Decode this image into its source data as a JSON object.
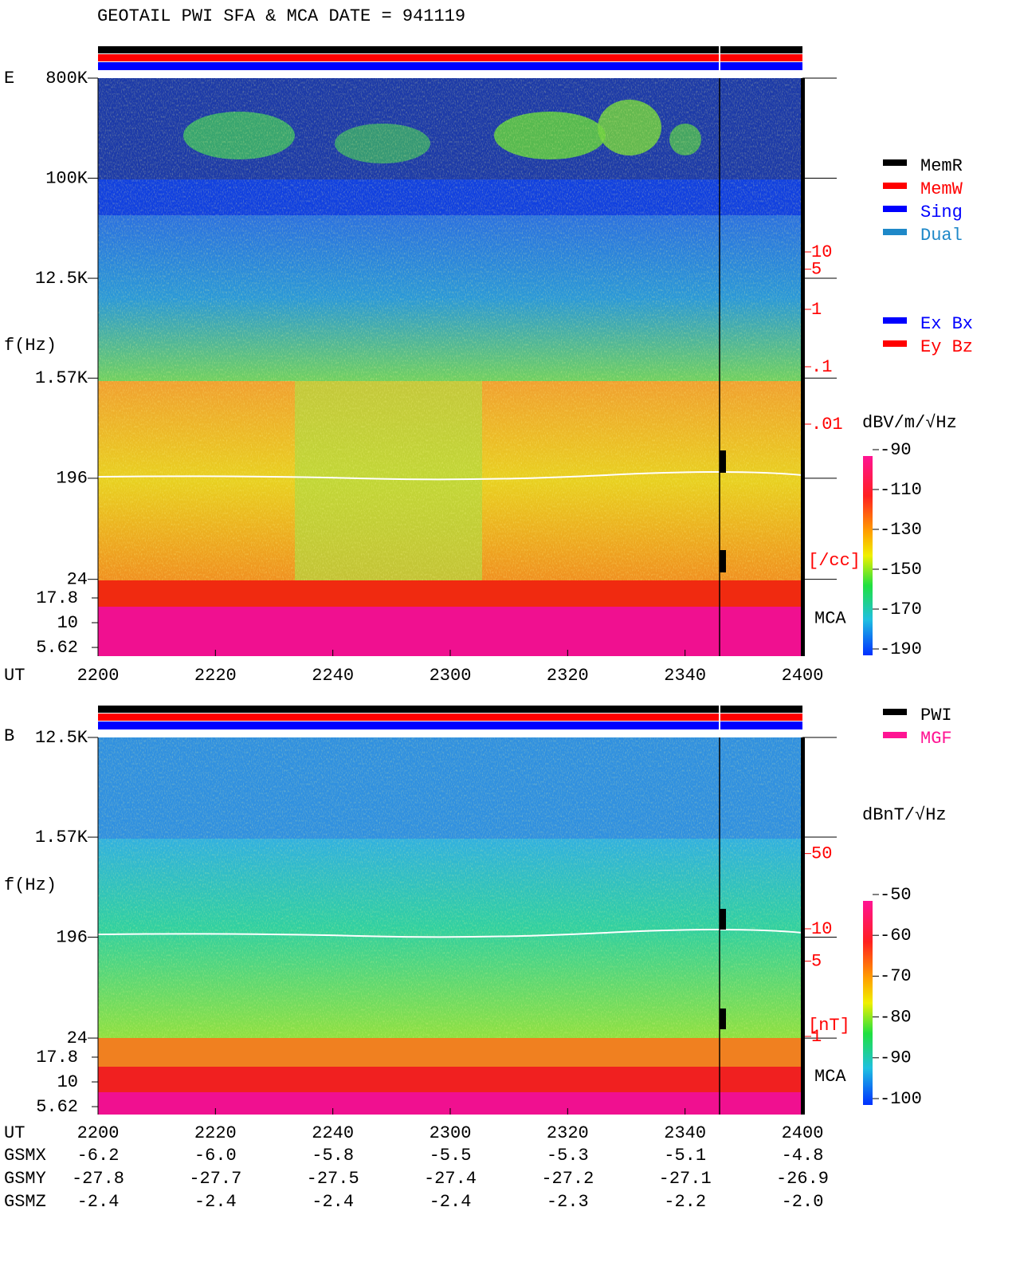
{
  "title": "GEOTAIL  PWI SFA & MCA   DATE = 941119",
  "chart_data": [
    {
      "type": "spectrogram",
      "panel": "E",
      "ylabel": "f(Hz)",
      "xlabel": "UT",
      "log_scale": true,
      "yticks": [
        {
          "value": 800000,
          "label": "800K"
        },
        {
          "value": 100000,
          "label": "100K"
        },
        {
          "value": 12500,
          "label": "12.5K"
        },
        {
          "value": 1570,
          "label": "1.57K"
        },
        196,
        24
      ],
      "mca_label": "MCA",
      "mca_ticks": [
        17.8,
        10,
        5.62
      ],
      "x": [
        "2200",
        "2220",
        "2240",
        "2300",
        "2320",
        "2340",
        "2400"
      ],
      "right_ticks": [
        10,
        5,
        1,
        {
          "value": 0.1,
          "label": ".1"
        },
        {
          "value": 0.01,
          "label": ".01"
        }
      ],
      "right_unit": "[/cc]",
      "colorbar_label": "dBV/m/√Hz",
      "colorbar_ticks": [
        -90,
        -110,
        -130,
        -150,
        -170,
        -190
      ],
      "legend": [
        {
          "name": "MemR",
          "color": "#000000"
        },
        {
          "name": "MemW",
          "color": "#ff0000"
        },
        {
          "name": "Sing",
          "color": "#0000ff"
        },
        {
          "name": "Dual",
          "color": "#1e88c8"
        }
      ],
      "legend2": [
        {
          "name": "Ex Bx",
          "color": "#0000ff"
        },
        {
          "name": "Ey Bz",
          "color": "#ff0000"
        }
      ]
    },
    {
      "type": "spectrogram",
      "panel": "B",
      "ylabel": "f(Hz)",
      "xlabel": "UT",
      "log_scale": true,
      "yticks": [
        {
          "value": 12500,
          "label": "12.5K"
        },
        {
          "value": 1570,
          "label": "1.57K"
        },
        196,
        24
      ],
      "mca_label": "MCA",
      "mca_ticks": [
        17.8,
        10,
        5.62
      ],
      "x": [
        "2200",
        "2220",
        "2240",
        "2300",
        "2320",
        "2340",
        "2400"
      ],
      "right_ticks": [
        50,
        10,
        5,
        1
      ],
      "right_unit": "[nT]",
      "colorbar_label": "dBnT/√Hz",
      "colorbar_ticks": [
        -50,
        -60,
        -70,
        -80,
        -90,
        -100
      ],
      "legend": [
        {
          "name": "PWI",
          "color": "#000000"
        },
        {
          "name": "MGF",
          "color": "#ff1493"
        }
      ]
    }
  ],
  "orbit": [
    {
      "name": "GSMX",
      "values": [
        "-6.2",
        "-6.0",
        "-5.8",
        "-5.5",
        "-5.3",
        "-5.1",
        "-4.8"
      ]
    },
    {
      "name": "GSMY",
      "values": [
        "-27.8",
        "-27.7",
        "-27.5",
        "-27.4",
        "-27.2",
        "-27.1",
        "-26.9"
      ]
    },
    {
      "name": "GSMZ",
      "values": [
        "-2.4",
        "-2.4",
        "-2.4",
        "-2.4",
        "-2.3",
        "-2.2",
        "-2.0"
      ]
    }
  ]
}
